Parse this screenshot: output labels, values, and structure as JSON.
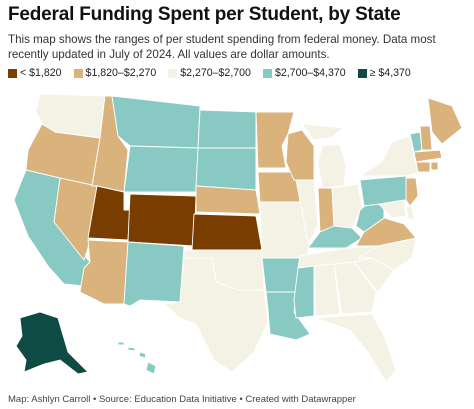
{
  "header": {
    "title": "Federal Funding Spent per Student, by State",
    "description": "This map shows the ranges of per student spending from federal money. Data most recently updated in July of 2024. All values are dollar amounts."
  },
  "legend": [
    {
      "label": "< $1,820",
      "color": "#7a3d00"
    },
    {
      "label": "$1,820–$2,270",
      "color": "#d9b27c"
    },
    {
      "label": "$2,270–$2,700",
      "color": "#f4f2e4"
    },
    {
      "label": "$2,700–$4,370",
      "color": "#88c9c3"
    },
    {
      "label": "≥ $4,370",
      "color": "#0e4b45"
    }
  ],
  "map_data": {
    "type": "choropleth",
    "region": "United States",
    "states": {
      "WA": 2,
      "OR": 1,
      "CA": 3,
      "NV": 1,
      "ID": 1,
      "MT": 3,
      "WY": 3,
      "UT": 0,
      "CO": 0,
      "AZ": 1,
      "NM": 3,
      "ND": 3,
      "SD": 3,
      "NE": 1,
      "KS": 0,
      "OK": 2,
      "TX": 2,
      "MN": 1,
      "IA": 1,
      "MO": 2,
      "AR": 3,
      "LA": 3,
      "WI": 1,
      "IL": 2,
      "MI": 2,
      "IN": 1,
      "OH": 2,
      "KY": 3,
      "TN": 2,
      "MS": 3,
      "AL": 2,
      "GA": 2,
      "FL": 2,
      "SC": 2,
      "NC": 2,
      "VA": 1,
      "WV": 3,
      "PA": 3,
      "NY": 2,
      "VT": 3,
      "NH": 1,
      "ME": 1,
      "MA": 1,
      "CT": 1,
      "RI": 1,
      "NJ": 1,
      "DE": 2,
      "MD": 2,
      "AK": 4,
      "HI": 3
    }
  },
  "footer": {
    "credit": "Map: Ashlyn Carroll • Source: Education Data Initiative • Created with Datawrapper"
  }
}
